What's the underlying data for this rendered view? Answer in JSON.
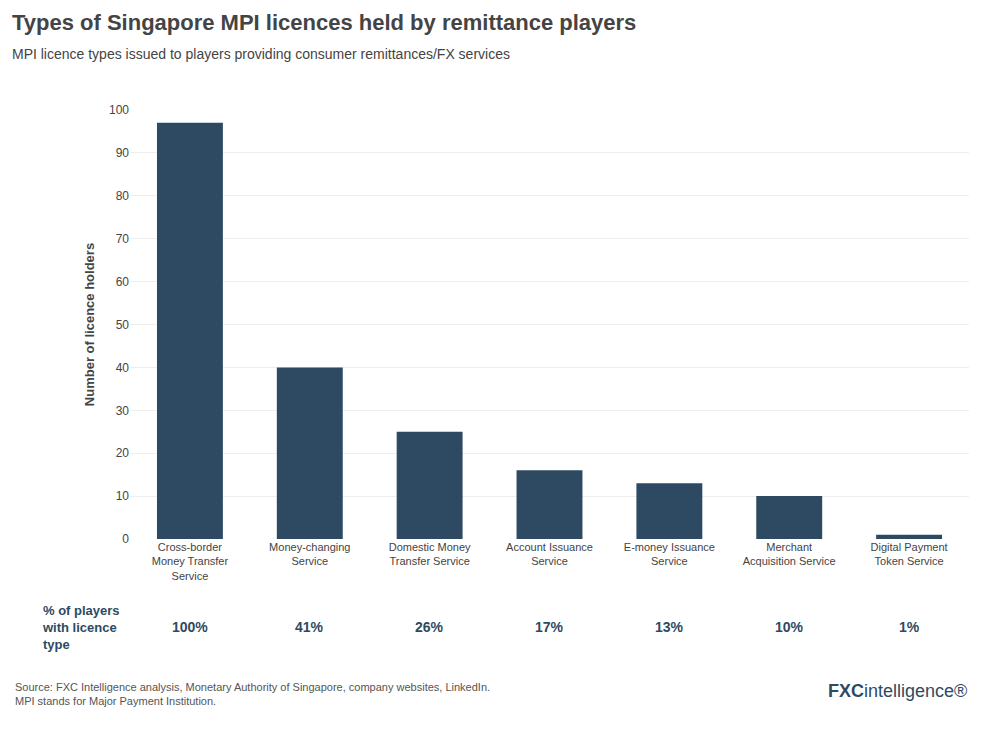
{
  "chart_data": {
    "type": "bar",
    "title": "Types of Singapore MPI licences held by remittance players",
    "subtitle": "MPI licence types issued to players providing consumer remittances/FX services",
    "categories": [
      "Cross-border\nMoney Transfer\nService",
      "Money-changing\nService",
      "Domestic Money\nTransfer Service",
      "Account Issuance\nService",
      "E-money Issuance\nService",
      "Merchant\nAcquisition Service",
      "Digital Payment\nToken Service"
    ],
    "values": [
      97,
      40,
      25,
      16,
      13,
      10,
      1
    ],
    "color": "#2e4a62",
    "ylabel": "Number of licence holders",
    "ylim": [
      0,
      100
    ],
    "yticks": [
      0,
      10,
      20,
      30,
      40,
      50,
      60,
      70,
      80,
      90,
      100
    ],
    "grid": true,
    "percentage_title": "% of players\nwith licence\ntype",
    "percentages": [
      100,
      41,
      26,
      17,
      13,
      10,
      1
    ],
    "percentage_labels": [
      "100%",
      "41%",
      "26%",
      "17%",
      "13%",
      "10%",
      "1%"
    ],
    "source": "Source: FXC Intelligence analysis, Monetary Authority of Singapore, company websites, LinkedIn.\nMPI stands for Major Payment Institution.",
    "logo": [
      "FXC",
      "intelligence®"
    ]
  }
}
